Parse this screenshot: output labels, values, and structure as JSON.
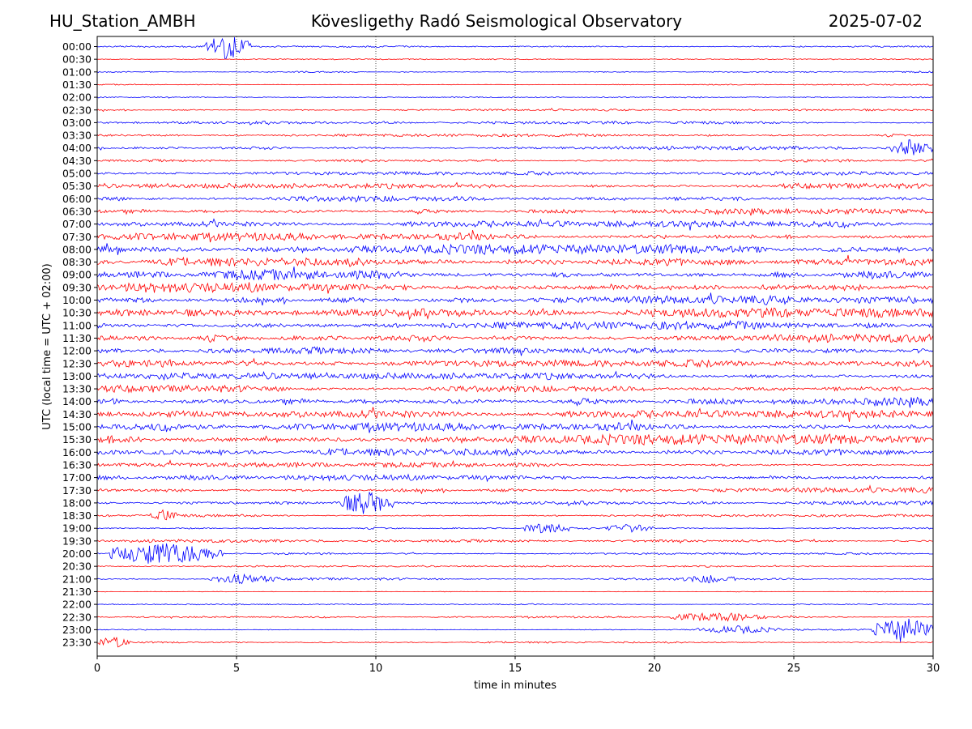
{
  "header": {
    "station": "HU_Station_AMBH",
    "title": "Kövesligethy Radó Seismological Observatory",
    "date": "2025-07-02"
  },
  "chart_data": {
    "type": "line",
    "title": "Kövesligethy Radó Seismological Observatory",
    "xlabel": "time in minutes",
    "ylabel": "UTC (local time = UTC + 02:00)",
    "xlim": [
      0,
      30
    ],
    "x_ticks": [
      0,
      5,
      10,
      15,
      20,
      25,
      30
    ],
    "grid": "vertical dotted lines at x ticks",
    "colors": [
      "#0000ff",
      "#ff0000"
    ],
    "row_labels": [
      "00:00",
      "00:30",
      "01:00",
      "01:30",
      "02:00",
      "02:30",
      "03:00",
      "03:30",
      "04:00",
      "04:30",
      "05:00",
      "05:30",
      "06:00",
      "06:30",
      "07:00",
      "07:30",
      "08:00",
      "08:30",
      "09:00",
      "09:30",
      "10:00",
      "10:30",
      "11:00",
      "11:30",
      "12:00",
      "12:30",
      "13:00",
      "13:30",
      "14:00",
      "14:30",
      "15:00",
      "15:30",
      "16:00",
      "16:30",
      "17:00",
      "17:30",
      "18:00",
      "18:30",
      "19:00",
      "19:30",
      "20:00",
      "20:30",
      "21:00",
      "21:30",
      "22:00",
      "22:30",
      "23:00",
      "23:30"
    ],
    "row_colors": [
      "blue",
      "red",
      "blue",
      "red",
      "blue",
      "red",
      "blue",
      "red",
      "blue",
      "red",
      "blue",
      "red",
      "blue",
      "red",
      "blue",
      "red",
      "blue",
      "red",
      "blue",
      "red",
      "blue",
      "red",
      "blue",
      "red",
      "blue",
      "red",
      "blue",
      "red",
      "blue",
      "red",
      "blue",
      "red",
      "blue",
      "red",
      "blue",
      "red",
      "blue",
      "red",
      "blue",
      "red",
      "blue",
      "red",
      "blue",
      "red",
      "blue",
      "red",
      "blue",
      "red"
    ],
    "row_noise_level": [
      0.25,
      0.15,
      0.25,
      0.2,
      0.35,
      0.3,
      0.4,
      0.45,
      0.55,
      0.4,
      0.55,
      0.75,
      0.9,
      0.8,
      0.9,
      1.1,
      1.4,
      1.3,
      1.5,
      1.5,
      1.3,
      1.4,
      1.3,
      1.2,
      1.1,
      1.1,
      1.0,
      1.0,
      1.2,
      1.1,
      1.2,
      1.5,
      1.1,
      0.7,
      0.9,
      0.8,
      0.6,
      0.4,
      0.35,
      0.45,
      0.3,
      0.25,
      0.35,
      0.12,
      0.15,
      0.25,
      0.2,
      0.25
    ],
    "events": [
      {
        "row": "00:00",
        "start_min": 3.8,
        "end_min": 5.5,
        "amplitude": 3.2
      },
      {
        "row": "04:00",
        "start_min": 28.5,
        "end_min": 30,
        "amplitude": 2.2
      },
      {
        "row": "18:00",
        "start_min": 8.6,
        "end_min": 10.6,
        "amplitude": 3.0
      },
      {
        "row": "18:30",
        "start_min": 1.8,
        "end_min": 3.0,
        "amplitude": 1.6
      },
      {
        "row": "19:00",
        "start_min": 15.3,
        "end_min": 17.0,
        "amplitude": 1.5
      },
      {
        "row": "19:00",
        "start_min": 18.2,
        "end_min": 20.0,
        "amplitude": 1.1
      },
      {
        "row": "20:00",
        "start_min": 0.4,
        "end_min": 4.5,
        "amplitude": 3.0
      },
      {
        "row": "21:00",
        "start_min": 4.0,
        "end_min": 6.5,
        "amplitude": 1.2
      },
      {
        "row": "21:00",
        "start_min": 21.0,
        "end_min": 23.0,
        "amplitude": 1.1
      },
      {
        "row": "22:30",
        "start_min": 20.5,
        "end_min": 24.0,
        "amplitude": 1.2
      },
      {
        "row": "23:00",
        "start_min": 21.5,
        "end_min": 24.5,
        "amplitude": 1.0
      },
      {
        "row": "23:00",
        "start_min": 27.8,
        "end_min": 30,
        "amplitude": 3.2
      },
      {
        "row": "23:30",
        "start_min": 0,
        "end_min": 1.2,
        "amplitude": 1.5
      }
    ]
  }
}
